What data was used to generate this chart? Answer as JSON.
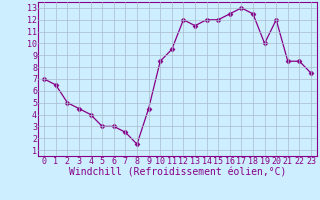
{
  "x": [
    0,
    1,
    2,
    3,
    4,
    5,
    6,
    7,
    8,
    9,
    10,
    11,
    12,
    13,
    14,
    15,
    16,
    17,
    18,
    19,
    20,
    21,
    22,
    23
  ],
  "y": [
    7.0,
    6.5,
    5.0,
    4.5,
    4.0,
    3.0,
    3.0,
    2.5,
    1.5,
    4.5,
    8.5,
    9.5,
    12.0,
    11.5,
    12.0,
    12.0,
    12.5,
    13.0,
    12.5,
    10.0,
    12.0,
    8.5,
    8.5,
    7.5
  ],
  "line_color": "#880088",
  "marker": "D",
  "markersize": 2.5,
  "linewidth": 0.9,
  "bg_color": "#cceeff",
  "grid_color": "#aabbcc",
  "xlabel": "Windchill (Refroidissement éolien,°C)",
  "xlabel_color": "#880088",
  "tick_color": "#880088",
  "xlim": [
    -0.5,
    23.5
  ],
  "ylim": [
    0.5,
    13.5
  ],
  "yticks": [
    1,
    2,
    3,
    4,
    5,
    6,
    7,
    8,
    9,
    10,
    11,
    12,
    13
  ],
  "xticks": [
    0,
    1,
    2,
    3,
    4,
    5,
    6,
    7,
    8,
    9,
    10,
    11,
    12,
    13,
    14,
    15,
    16,
    17,
    18,
    19,
    20,
    21,
    22,
    23
  ],
  "xlabel_fontsize": 7,
  "tick_fontsize": 6,
  "spine_color": "#880088"
}
